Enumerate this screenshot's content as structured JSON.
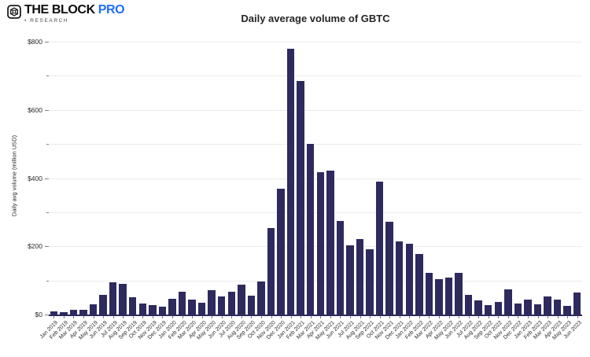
{
  "header": {
    "brand": "THE BLOCK",
    "brand_suffix": "PRO",
    "sub_bullet": "•",
    "sub": "RESEARCH"
  },
  "colors": {
    "bar": "#2e2a5e",
    "brand_blue": "#1f6fff",
    "gridline": "#ebebee",
    "axis_text": "#27272a"
  },
  "chart_data": {
    "type": "bar",
    "title": "Daily average volume of GBTC",
    "xlabel": "",
    "ylabel": "Daily avg volume (million USD)",
    "ylim": [
      0,
      800
    ],
    "grid_step": 100,
    "ytick_step": 200,
    "ytick_prefix": "$",
    "grid": true,
    "legend": false,
    "bar_color": "#2e2a5e",
    "categories": [
      "Jan 2019",
      "Feb 2019",
      "Mar 2019",
      "Apr 2019",
      "May 2019",
      "Jun 2019",
      "Jul 2019",
      "Aug 2019",
      "Sep 2019",
      "Oct 2019",
      "Nov 2019",
      "Dec 2019",
      "Jan 2020",
      "Feb 2020",
      "Mar 2020",
      "Apr 2020",
      "May 2020",
      "Jun 2020",
      "Jul 2020",
      "Aug 2020",
      "Sep 2020",
      "Oct 2020",
      "Nov 2020",
      "Dec 2020",
      "Jan 2021",
      "Feb 2021",
      "Mar 2021",
      "Apr 2021",
      "May 2021",
      "Jun 2021",
      "Jul 2021",
      "Aug 2021",
      "Sep 2021",
      "Oct 2021",
      "Nov 2021",
      "Dec 2021",
      "Jan 2022",
      "Feb 2022",
      "Mar 2022",
      "Apr 2022",
      "May 2022",
      "Jun 2022",
      "Jul 2022",
      "Aug 2022",
      "Sep 2022",
      "Oct 2022",
      "Nov 2022",
      "Dec 2022",
      "Jan 2023",
      "Feb 2023",
      "Mar 2023",
      "Apr 2023",
      "May 2023",
      "Jun 2023"
    ],
    "values": [
      10,
      8,
      13,
      14,
      31,
      58,
      94,
      90,
      51,
      33,
      27,
      23,
      46,
      68,
      44,
      35,
      71,
      54,
      68,
      88,
      55,
      97,
      253,
      369,
      780,
      684,
      500,
      417,
      423,
      275,
      203,
      221,
      192,
      390,
      273,
      215,
      207,
      178,
      123,
      104,
      109,
      123,
      58,
      42,
      27,
      37,
      73,
      32,
      44,
      31,
      54,
      44,
      25,
      65
    ]
  }
}
